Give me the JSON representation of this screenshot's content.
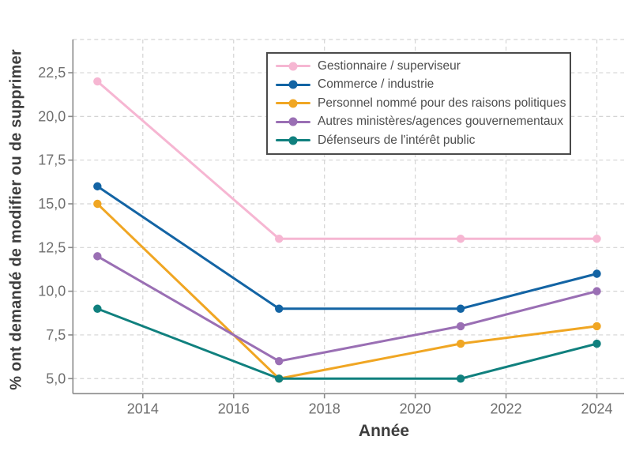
{
  "figure": {
    "background": "#ffffff",
    "axis_title_color": "#3d3d3d",
    "tick_label_color": "#6f6f6f",
    "grid_color": "#d4d4d4",
    "spine_color": "#8a8a8a",
    "legend_border_color": "#4a4a4a",
    "legend_text_color": "#4d4d4d"
  },
  "chart_data": {
    "type": "line",
    "x": [
      2013,
      2017,
      2021,
      2024
    ],
    "series": [
      {
        "name": "Gestionnaire / superviseur",
        "color": "#f6b6d2",
        "values": [
          22,
          13,
          13,
          13
        ]
      },
      {
        "name": "Commerce / industrie",
        "color": "#1364a4",
        "values": [
          16,
          9,
          9,
          11
        ]
      },
      {
        "name": "Personnel nommé pour des raisons politiques",
        "color": "#f0a623",
        "values": [
          15,
          5,
          7,
          8
        ]
      },
      {
        "name": "Autres ministères/agences gouvernementaux",
        "color": "#9a6fb4",
        "values": [
          12,
          6,
          8,
          10
        ]
      },
      {
        "name": "Défenseurs de l'intérêt public",
        "color": "#10807e",
        "values": [
          9,
          5,
          5,
          7
        ]
      }
    ],
    "xlabel": "Année",
    "ylabel": "% ont demandé de modifier ou de supprimer",
    "xticks": {
      "values": [
        2014,
        2016,
        2018,
        2020,
        2022,
        2024
      ],
      "labels": [
        "2014",
        "2016",
        "2018",
        "2020",
        "2022",
        "2024"
      ]
    },
    "yticks": {
      "values": [
        5,
        7.5,
        10,
        12.5,
        15,
        17.5,
        20,
        22.5
      ],
      "labels": [
        "5,0",
        "7,5",
        "10,0",
        "12,5",
        "15,0",
        "17,5",
        "20,0",
        "22,5"
      ]
    },
    "xlim": [
      2012.46,
      2024.6
    ],
    "ylim": [
      4.14,
      24.4
    ],
    "grid": "dashed gridlines on both axes, dashed top border",
    "legend_position": "upper center, boxed",
    "marker": "circle",
    "line_width": 3
  }
}
